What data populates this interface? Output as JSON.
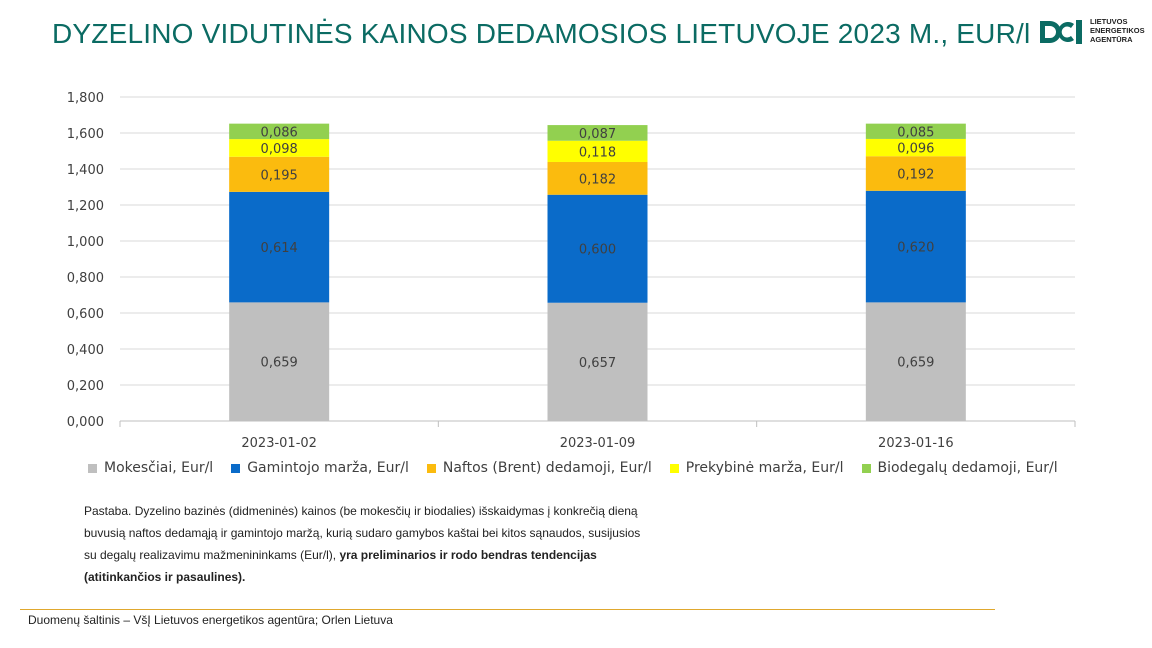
{
  "header": {
    "title": "DYZELINO VIDUTINĖS KAINOS DEDAMOSIOS LIETUVOJE 2023 M., EUR/l"
  },
  "logo": {
    "lines": [
      "LIETUVOS",
      "ENERGETIKOS",
      "AGENTŪRA"
    ]
  },
  "chart_data": {
    "type": "bar",
    "stacked": true,
    "categories": [
      "2023-01-02",
      "2023-01-09",
      "2023-01-16"
    ],
    "ylim": [
      0,
      1.8
    ],
    "yticks": [
      "0,000",
      "0,200",
      "0,400",
      "0,600",
      "0,800",
      "1,000",
      "1,200",
      "1,400",
      "1,600",
      "1,800"
    ],
    "ytick_values": [
      0,
      0.2,
      0.4,
      0.6,
      0.8,
      1.0,
      1.2,
      1.4,
      1.6,
      1.8
    ],
    "grid": true,
    "legend_position": "bottom",
    "series": [
      {
        "name": "Mokesčiai, Eur/l",
        "color": "#bfbfbf",
        "label_color": "#404040",
        "values": [
          0.659,
          0.657,
          0.659
        ],
        "labels": [
          "0,659",
          "0,657",
          "0,659"
        ]
      },
      {
        "name": "Gamintojo marža, Eur/l",
        "color": "#0a6bc9",
        "label_color": "#404040",
        "values": [
          0.614,
          0.6,
          0.62
        ],
        "labels": [
          "0,614",
          "0,600",
          "0,620"
        ]
      },
      {
        "name": "Naftos (Brent) dedamoji, Eur/l",
        "color": "#fbbb0e",
        "label_color": "#404040",
        "values": [
          0.195,
          0.182,
          0.192
        ],
        "labels": [
          "0,195",
          "0,182",
          "0,192"
        ]
      },
      {
        "name": "Prekybinė marža, Eur/l",
        "color": "#ffff00",
        "label_color": "#404040",
        "values": [
          0.098,
          0.118,
          0.096
        ],
        "labels": [
          "0,098",
          "0,118",
          "0,096"
        ]
      },
      {
        "name": "Biodegalų dedamoji, Eur/l",
        "color": "#92d050",
        "label_color": "#404040",
        "values": [
          0.086,
          0.087,
          0.085
        ],
        "labels": [
          "0,086",
          "0,087",
          "0,085"
        ]
      }
    ]
  },
  "note": {
    "line1": "Pastaba. Dyzelino bazinės (didmeninės) kainos (be mokesčių ir biodalies) išskaidymas į konkrečią dieną",
    "line2": "buvusią naftos dedamąją ir gamintojo maržą, kurią sudaro gamybos kaštai bei kitos sąnaudos, susijusios",
    "line3_plain": "su degalų realizavimu mažmenininkams (Eur/l), ",
    "line3_bold": "yra preliminarios ir rodo bendras tendencijas",
    "line4_bold": "(atitinkančios ir pasaulines)."
  },
  "footer": {
    "source": "Duomenų šaltinis – VšĮ Lietuvos energetikos agentūra; Orlen Lietuva"
  }
}
